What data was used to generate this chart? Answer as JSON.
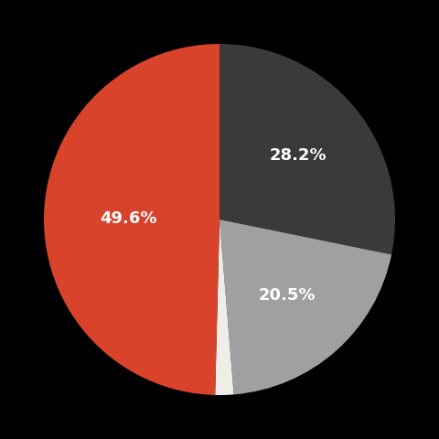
{
  "slices": [
    28.2,
    20.5,
    1.7,
    49.6
  ],
  "colors": [
    "#3a3a3a",
    "#a0a0a0",
    "#f0ece8",
    "#d9432b"
  ],
  "labels": [
    "28.2%",
    "20.5%",
    "",
    "49.6%"
  ],
  "label_colors": [
    "#ffffff",
    "#ffffff",
    "#ffffff",
    "#ffffff"
  ],
  "background_color": "#000000",
  "startangle": 90,
  "figsize": [
    4.8,
    4.8
  ],
  "dpi": 100,
  "label_fontsize": 13,
  "label_fontweight": "bold",
  "label_radii": [
    0.58,
    0.58,
    0.0,
    0.52
  ]
}
